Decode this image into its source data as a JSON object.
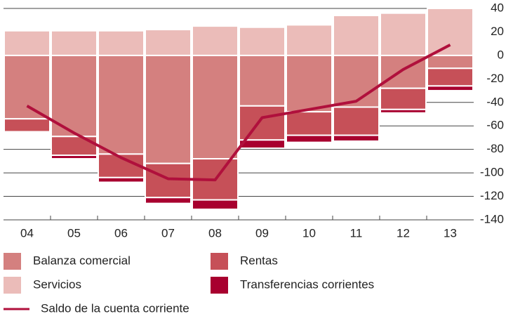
{
  "chart_data": {
    "type": "bar",
    "stacked": true,
    "categories": [
      "04",
      "05",
      "06",
      "07",
      "08",
      "09",
      "10",
      "11",
      "12",
      "13"
    ],
    "series": [
      {
        "name": "Balanza comercial",
        "color": "#d4807f",
        "values": [
          -54,
          -69,
          -84,
          -92,
          -88,
          -43,
          -48,
          -44,
          -28,
          -11
        ]
      },
      {
        "name": "Servicios",
        "color": "#ebbcb9",
        "values": [
          21,
          21,
          21,
          22,
          25,
          24,
          26,
          34,
          36,
          40
        ]
      },
      {
        "name": "Rentas",
        "color": "#c65058",
        "values": [
          -11,
          -16,
          -20,
          -29,
          -35,
          -29,
          -20,
          -24,
          -18,
          -15
        ]
      },
      {
        "name": "Transferencias corrientes",
        "color": "#a8002f",
        "values": [
          -1,
          -3,
          -4,
          -5,
          -8,
          -7,
          -6,
          -5,
          -3,
          -4
        ]
      },
      {
        "name": "Saldo de la cuenta corriente",
        "color": "#b0103c",
        "type": "line",
        "values": [
          -43,
          -66,
          -87,
          -105,
          -106,
          -53,
          -46,
          -39,
          -12,
          9
        ]
      }
    ],
    "ylim": [
      -140,
      40
    ],
    "yticks": [
      40,
      20,
      0,
      -20,
      -40,
      -60,
      -80,
      -100,
      -120,
      -140
    ],
    "grid": true
  }
}
